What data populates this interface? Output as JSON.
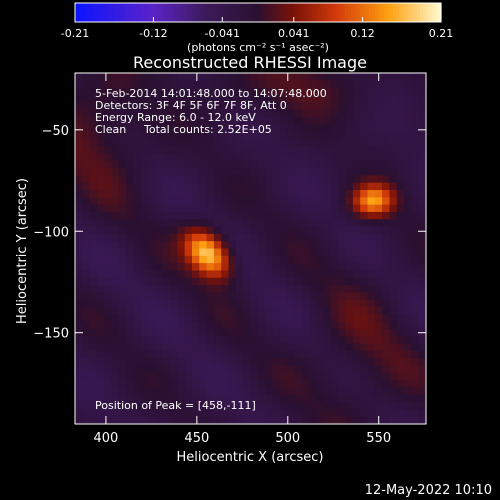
{
  "chart_data": {
    "type": "heatmap",
    "title": "Reconstructed RHESSI Image",
    "xlabel": "Heliocentric X (arcsec)",
    "ylabel": "Heliocentric Y (arcsec)",
    "xlim": [
      383,
      576
    ],
    "ylim": [
      -195,
      -22
    ],
    "x_ticks": [
      400,
      450,
      500,
      550
    ],
    "y_ticks": [
      -50,
      -100,
      -150
    ],
    "colorbar": {
      "range": [
        -0.21,
        0.21
      ],
      "tick_values": [
        -0.21,
        -0.12,
        -0.041,
        0.041,
        0.12,
        0.21
      ],
      "tick_labels": [
        "-0.21",
        "-0.12",
        "-0.041",
        "0.041",
        "0.12",
        "0.21"
      ],
      "unit_label": "(photons cm⁻² s⁻¹ asec⁻²)"
    },
    "colormap_stops": [
      {
        "v": -0.21,
        "color": "#0a14ff"
      },
      {
        "v": -0.12,
        "color": "#5a23c8"
      },
      {
        "v": -0.06,
        "color": "#3c1a5a"
      },
      {
        "v": 0.0,
        "color": "#2a1030"
      },
      {
        "v": 0.041,
        "color": "#7a1208"
      },
      {
        "v": 0.09,
        "color": "#d23a0a"
      },
      {
        "v": 0.15,
        "color": "#ffa010"
      },
      {
        "v": 0.21,
        "color": "#fffad0"
      }
    ],
    "sources": [
      {
        "x": 456,
        "y": -111,
        "peak": 0.21,
        "sigma_major": 10,
        "sigma_minor": 6.5,
        "angle_deg": -40
      },
      {
        "x": 547,
        "y": -85,
        "peak": 0.16,
        "sigma_major": 8,
        "sigma_minor": 5.5,
        "angle_deg": 5
      }
    ],
    "peak_position": [
      458,
      -111
    ],
    "annotations": {
      "time_range": "5-Feb-2014 14:01:48.000 to 14:07:48.000",
      "detectors": "Detectors: 3F 4F 5F 6F 7F 8F, Att 0",
      "energy": "Energy Range: 6.0 - 12.0 keV",
      "clean": "Clean",
      "counts": "Total counts: 2.52E+05",
      "peak": "Position of Peak = [458,-111]"
    }
  },
  "footer": {
    "date_stamp": "12-May-2022 10:10"
  }
}
